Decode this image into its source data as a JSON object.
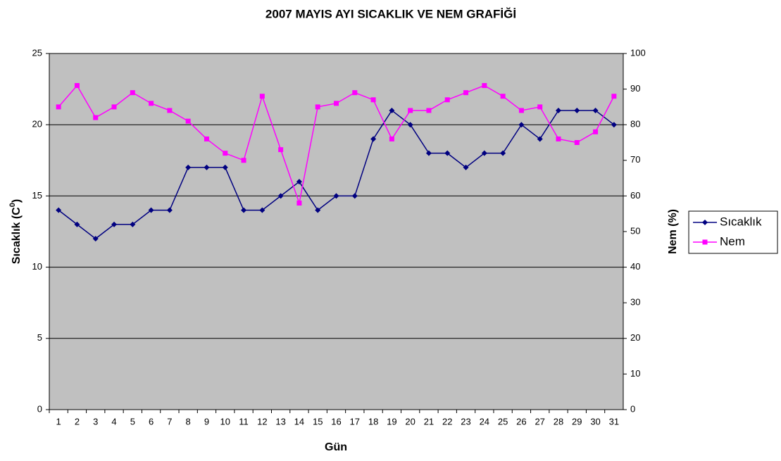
{
  "chart_data": {
    "type": "line",
    "title": "2007 MAYIS AYI SICAKLIK VE NEM GRAFİĞİ",
    "xlabel": "Gün",
    "ylabel": {
      "text": "Sıcaklık (C",
      "sup": "0",
      "end": ")"
    },
    "y2label": "Nem (%)",
    "categories": [
      "1",
      "2",
      "3",
      "4",
      "5",
      "6",
      "7",
      "8",
      "9",
      "10",
      "11",
      "12",
      "13",
      "14",
      "15",
      "16",
      "17",
      "18",
      "19",
      "20",
      "21",
      "22",
      "23",
      "24",
      "25",
      "26",
      "27",
      "28",
      "29",
      "30",
      "31"
    ],
    "series": [
      {
        "name": "Sıcaklık",
        "color": "#000080",
        "marker": "diamond",
        "axis": "y",
        "values": [
          14,
          13,
          12,
          13,
          13,
          14,
          14,
          17,
          17,
          17,
          14,
          14,
          15,
          16,
          14,
          15,
          15,
          19,
          21,
          20,
          18,
          18,
          17,
          18,
          18,
          20,
          19,
          21,
          21,
          21,
          20
        ]
      },
      {
        "name": "Nem",
        "color": "#ff00ff",
        "marker": "square",
        "axis": "y2",
        "values": [
          85,
          91,
          82,
          85,
          89,
          86,
          84,
          81,
          76,
          72,
          70,
          88,
          73,
          58,
          85,
          86,
          89,
          87,
          76,
          84,
          84,
          87,
          89,
          91,
          88,
          84,
          85,
          76,
          75,
          78,
          88
        ]
      }
    ],
    "ylim": [
      0,
      25
    ],
    "yticks": [
      0,
      5,
      10,
      15,
      20,
      25
    ],
    "y2lim": [
      0,
      100
    ],
    "y2ticks": [
      0,
      10,
      20,
      30,
      40,
      50,
      60,
      70,
      80,
      90,
      100
    ],
    "grid": true,
    "legend": "right",
    "plot_background": "#c0c0c0"
  }
}
